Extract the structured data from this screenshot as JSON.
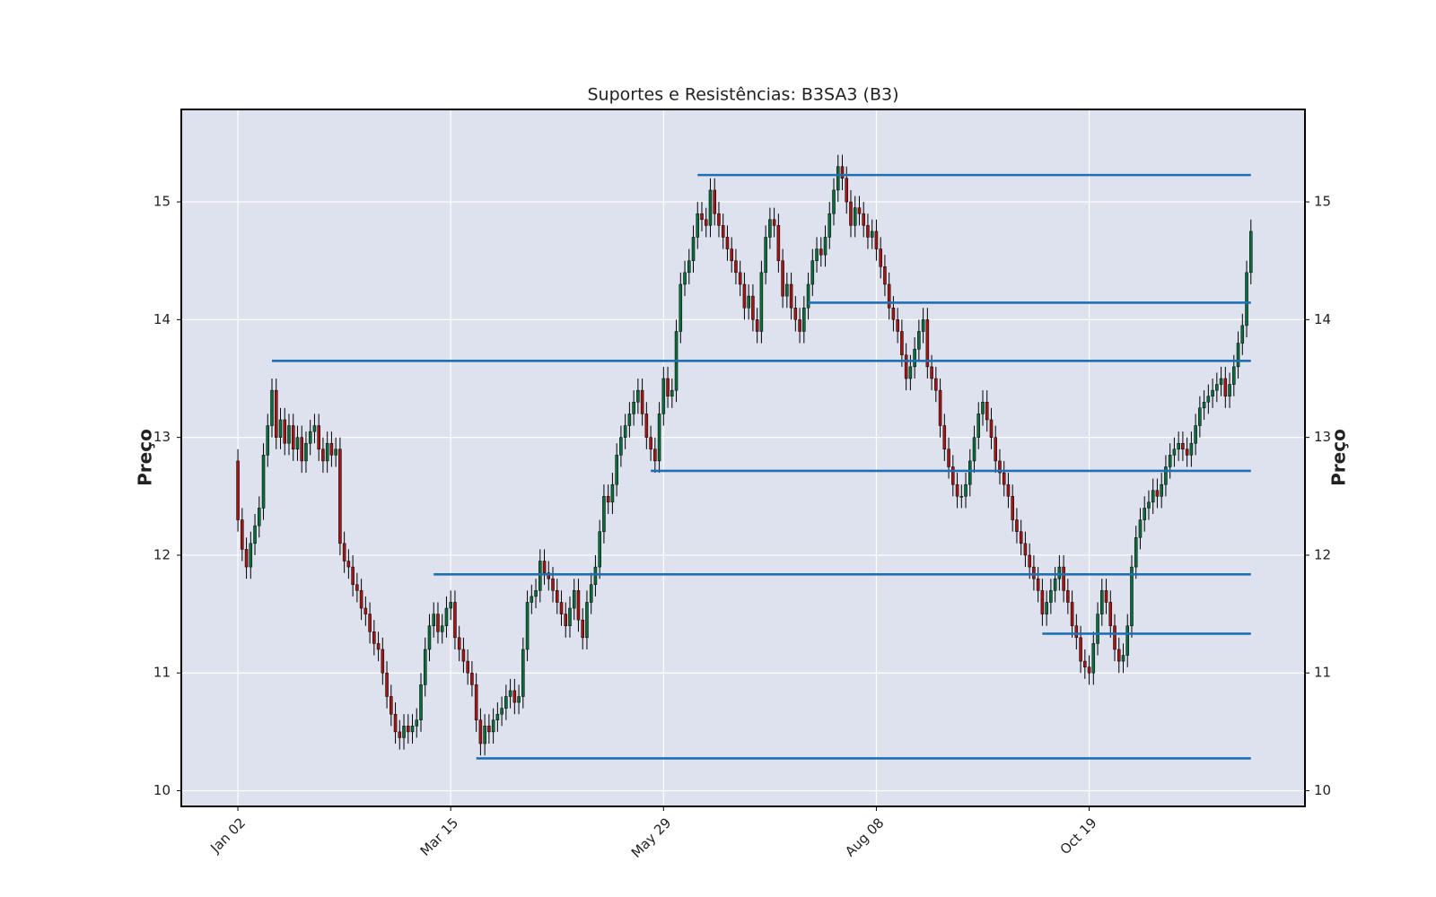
{
  "chart_data": {
    "type": "candlestick",
    "title": "Suportes e Resistências: B3SA3 (B3)",
    "ylabel": "Preço",
    "y2label": "Preço",
    "xlim": [
      -13.3,
      250.7
    ],
    "ylim": [
      9.867,
      15.785
    ],
    "xticks": [
      {
        "value": 0,
        "label": "Jan 02"
      },
      {
        "value": 50,
        "label": "Mar 15"
      },
      {
        "value": 100,
        "label": "May 29"
      },
      {
        "value": 150,
        "label": "Aug 08"
      },
      {
        "value": 200,
        "label": "Oct 19"
      }
    ],
    "yticks": [
      10,
      11,
      12,
      13,
      14,
      15
    ],
    "y2ticks": [
      10,
      11,
      12,
      13,
      14,
      15
    ],
    "grid": true,
    "up_color": "#0b6b3a",
    "down_color": "#a11515",
    "wick_color": "#000000",
    "level_color": "#1f6fb4",
    "background": "#dde2ee",
    "open": [
      12.8,
      12.3,
      12.05,
      11.9,
      12.1,
      12.25,
      12.4,
      12.85,
      13.1,
      13.4,
      13,
      13.15,
      12.95,
      13.1,
      12.9,
      13,
      12.8,
      12.95,
      13.05,
      13.1,
      12.9,
      12.8,
      12.95,
      12.85,
      12.9,
      12.1,
      11.95,
      11.9,
      11.75,
      11.7,
      11.55,
      11.5,
      11.35,
      11.25,
      11.2,
      11,
      10.8,
      10.65,
      10.5,
      10.45,
      10.55,
      10.5,
      10.55,
      10.6,
      10.9,
      11.2,
      11.4,
      11.5,
      11.35,
      11.4,
      11.55,
      11.6,
      11.3,
      11.2,
      11.1,
      11,
      10.9,
      10.6,
      10.4,
      10.55,
      10.5,
      10.6,
      10.65,
      10.7,
      10.8,
      10.85,
      10.75,
      10.8,
      11.2,
      11.6,
      11.65,
      11.7,
      11.95,
      11.85,
      11.8,
      11.7,
      11.6,
      11.5,
      11.4,
      11.55,
      11.7,
      11.45,
      11.3,
      11.6,
      11.75,
      11.9,
      12.2,
      12.5,
      12.45,
      12.6,
      12.85,
      13,
      13.1,
      13.2,
      13.3,
      13.4,
      13.2,
      13,
      12.9,
      12.8,
      13.2,
      13.5,
      13.35,
      13.4,
      13.9,
      14.3,
      14.4,
      14.5,
      14.7,
      14.9,
      14.85,
      14.8,
      15.1,
      14.9,
      14.8,
      14.7,
      14.6,
      14.5,
      14.4,
      14.3,
      14.1,
      14.2,
      14,
      13.9,
      14.4,
      14.7,
      14.85,
      14.8,
      14.5,
      14.2,
      14.3,
      14.1,
      14,
      13.9,
      14.1,
      14.3,
      14.5,
      14.6,
      14.55,
      14.7,
      14.9,
      15.1,
      15.3,
      15.2,
      15,
      14.8,
      14.95,
      14.9,
      14.8,
      14.7,
      14.75,
      14.6,
      14.45,
      14.3,
      14.1,
      14,
      13.9,
      13.7,
      13.5,
      13.6,
      13.75,
      13.9,
      14,
      13.6,
      13.5,
      13.4,
      13.1,
      12.9,
      12.75,
      12.6,
      12.5,
      12.5,
      12.6,
      12.8,
      13,
      13.2,
      13.3,
      13.15,
      13,
      12.8,
      12.7,
      12.6,
      12.5,
      12.3,
      12.2,
      12.1,
      12,
      11.9,
      11.8,
      11.7,
      11.5,
      11.6,
      11.7,
      11.8,
      11.9,
      11.7,
      11.6,
      11.4,
      11.3,
      11.1,
      11.05,
      11,
      11.25,
      11.5,
      11.7,
      11.6,
      11.4,
      11.2,
      11.1,
      11.15,
      11.4,
      11.9,
      12.15,
      12.3,
      12.4,
      12.45,
      12.55,
      12.5,
      12.6,
      12.75,
      12.85,
      12.9,
      12.95,
      12.9,
      12.85,
      12.95,
      13.1,
      13.25,
      13.3,
      13.35,
      13.4,
      13.45,
      13.5,
      13.35,
      13.45,
      13.6,
      13.8,
      13.95,
      14.4
    ],
    "high": [
      12.9,
      12.4,
      12.15,
      12.2,
      12.35,
      12.5,
      12.95,
      13.2,
      13.5,
      13.5,
      13.25,
      13.25,
      13.2,
      13.2,
      13.1,
      13.1,
      13.05,
      13.15,
      13.2,
      13.2,
      13,
      13.05,
      13.05,
      13,
      13,
      12.2,
      12.05,
      12,
      11.85,
      11.8,
      11.65,
      11.6,
      11.45,
      11.35,
      11.3,
      11.1,
      10.9,
      10.75,
      10.6,
      10.65,
      10.65,
      10.65,
      10.7,
      11,
      11.3,
      11.5,
      11.6,
      11.6,
      11.5,
      11.65,
      11.7,
      11.7,
      11.4,
      11.3,
      11.2,
      11.1,
      11,
      10.7,
      10.65,
      10.65,
      10.7,
      10.75,
      10.8,
      10.9,
      10.95,
      10.95,
      10.9,
      11.3,
      11.7,
      11.75,
      11.8,
      12.05,
      12.05,
      11.95,
      11.9,
      11.8,
      11.7,
      11.6,
      11.65,
      11.8,
      11.8,
      11.55,
      11.7,
      11.85,
      12,
      12.3,
      12.6,
      12.6,
      12.7,
      12.95,
      13.1,
      13.2,
      13.3,
      13.4,
      13.5,
      13.5,
      13.3,
      13.1,
      13,
      13.3,
      13.6,
      13.6,
      13.5,
      14,
      14.4,
      14.5,
      14.6,
      14.8,
      15,
      15,
      14.95,
      15.2,
      15.2,
      15,
      14.9,
      14.8,
      14.7,
      14.6,
      14.5,
      14.4,
      14.3,
      14.3,
      14.1,
      14.5,
      14.8,
      14.95,
      14.95,
      14.9,
      14.6,
      14.4,
      14.4,
      14.2,
      14.1,
      14.2,
      14.4,
      14.6,
      14.7,
      14.7,
      14.8,
      15,
      15.2,
      15.4,
      15.4,
      15.3,
      15.1,
      15.05,
      15.05,
      15,
      14.9,
      14.85,
      14.85,
      14.7,
      14.55,
      14.4,
      14.2,
      14.1,
      14,
      13.8,
      13.7,
      13.85,
      14,
      14.1,
      14.1,
      13.7,
      13.6,
      13.5,
      13.2,
      13,
      12.85,
      12.7,
      12.6,
      12.7,
      12.9,
      13.1,
      13.3,
      13.4,
      13.4,
      13.25,
      13.1,
      12.9,
      12.8,
      12.7,
      12.6,
      12.4,
      12.3,
      12.2,
      12.1,
      12,
      11.9,
      11.8,
      11.7,
      11.8,
      11.9,
      12,
      12,
      11.8,
      11.7,
      11.5,
      11.4,
      11.2,
      11.15,
      11.35,
      11.6,
      11.8,
      11.8,
      11.7,
      11.5,
      11.3,
      11.25,
      11.5,
      12,
      12.25,
      12.4,
      12.5,
      12.55,
      12.65,
      12.65,
      12.7,
      12.85,
      12.95,
      13,
      13.05,
      13.05,
      13,
      13.05,
      13.2,
      13.35,
      13.4,
      13.45,
      13.5,
      13.55,
      13.6,
      13.6,
      13.55,
      13.7,
      13.9,
      14.05,
      14.5,
      14.85
    ],
    "low": [
      12.2,
      11.95,
      11.8,
      11.8,
      12,
      12.15,
      12.3,
      12.75,
      13,
      12.9,
      12.9,
      12.85,
      12.85,
      12.8,
      12.8,
      12.7,
      12.7,
      12.85,
      12.95,
      12.8,
      12.7,
      12.7,
      12.75,
      12.75,
      12,
      11.85,
      11.8,
      11.65,
      11.6,
      11.45,
      11.4,
      11.25,
      11.15,
      11.1,
      10.9,
      10.7,
      10.55,
      10.4,
      10.35,
      10.35,
      10.4,
      10.4,
      10.45,
      10.5,
      10.8,
      11.1,
      11.3,
      11.25,
      11.25,
      11.3,
      11.45,
      11.2,
      11.1,
      11,
      10.9,
      10.8,
      10.5,
      10.3,
      10.3,
      10.4,
      10.4,
      10.5,
      10.55,
      10.6,
      10.7,
      10.65,
      10.65,
      10.7,
      11.1,
      11.5,
      11.55,
      11.6,
      11.75,
      11.7,
      11.6,
      11.5,
      11.4,
      11.3,
      11.3,
      11.45,
      11.35,
      11.2,
      11.2,
      11.5,
      11.65,
      11.8,
      12.1,
      12.35,
      12.35,
      12.5,
      12.75,
      12.9,
      13,
      13.1,
      13.2,
      13.1,
      12.9,
      12.8,
      12.7,
      12.7,
      13.1,
      13.25,
      13.25,
      13.3,
      13.8,
      14.2,
      14.3,
      14.4,
      14.6,
      14.75,
      14.7,
      14.7,
      14.8,
      14.7,
      14.6,
      14.5,
      14.4,
      14.3,
      14.2,
      14,
      14,
      13.9,
      13.8,
      13.8,
      14.3,
      14.6,
      14.7,
      14.4,
      14.1,
      14.1,
      14,
      13.9,
      13.8,
      13.8,
      14,
      14.2,
      14.4,
      14.45,
      14.45,
      14.6,
      14.8,
      15,
      15.1,
      14.9,
      14.7,
      14.7,
      14.8,
      14.7,
      14.6,
      14.6,
      14.5,
      14.35,
      14.2,
      14,
      13.9,
      13.8,
      13.6,
      13.4,
      13.4,
      13.5,
      13.65,
      13.8,
      13.5,
      13.4,
      13.3,
      13,
      12.8,
      12.65,
      12.5,
      12.4,
      12.4,
      12.4,
      12.5,
      12.7,
      12.9,
      13.1,
      13.05,
      12.9,
      12.7,
      12.6,
      12.5,
      12.4,
      12.2,
      12.1,
      12,
      11.9,
      11.8,
      11.7,
      11.6,
      11.4,
      11.4,
      11.5,
      11.6,
      11.7,
      11.6,
      11.5,
      11.3,
      11.2,
      11,
      10.95,
      10.9,
      10.9,
      11.15,
      11.4,
      11.5,
      11.3,
      11.1,
      11,
      11,
      11.05,
      11.3,
      11.8,
      12.05,
      12.2,
      12.3,
      12.35,
      12.4,
      12.4,
      12.5,
      12.65,
      12.75,
      12.8,
      12.8,
      12.75,
      12.75,
      12.85,
      13,
      13.15,
      13.2,
      13.25,
      13.3,
      13.35,
      13.25,
      13.25,
      13.35,
      13.5,
      13.7,
      13.85,
      14.3
    ],
    "close": [
      12.3,
      12.05,
      11.9,
      12.1,
      12.25,
      12.4,
      12.85,
      13.1,
      13.4,
      13,
      13.15,
      12.95,
      13.1,
      12.9,
      13,
      12.8,
      12.95,
      13.05,
      13.1,
      12.9,
      12.8,
      12.95,
      12.85,
      12.9,
      12.1,
      11.95,
      11.9,
      11.75,
      11.7,
      11.55,
      11.5,
      11.35,
      11.25,
      11.2,
      11,
      10.8,
      10.65,
      10.5,
      10.45,
      10.55,
      10.5,
      10.55,
      10.6,
      10.9,
      11.2,
      11.4,
      11.5,
      11.35,
      11.4,
      11.55,
      11.6,
      11.3,
      11.2,
      11.1,
      11,
      10.9,
      10.6,
      10.4,
      10.55,
      10.5,
      10.6,
      10.65,
      10.7,
      10.8,
      10.85,
      10.75,
      10.8,
      11.2,
      11.6,
      11.65,
      11.7,
      11.95,
      11.85,
      11.8,
      11.7,
      11.6,
      11.5,
      11.4,
      11.55,
      11.7,
      11.45,
      11.3,
      11.6,
      11.75,
      11.9,
      12.2,
      12.5,
      12.45,
      12.6,
      12.85,
      13,
      13.1,
      13.2,
      13.3,
      13.4,
      13.2,
      13,
      12.9,
      12.8,
      13.2,
      13.5,
      13.35,
      13.4,
      13.9,
      14.3,
      14.4,
      14.5,
      14.7,
      14.9,
      14.85,
      14.8,
      15.1,
      14.9,
      14.8,
      14.7,
      14.6,
      14.5,
      14.4,
      14.3,
      14.1,
      14.2,
      14,
      13.9,
      14.4,
      14.7,
      14.85,
      14.8,
      14.5,
      14.2,
      14.3,
      14.1,
      14,
      13.9,
      14.1,
      14.3,
      14.5,
      14.6,
      14.55,
      14.7,
      14.9,
      15.1,
      15.3,
      15.2,
      15,
      14.8,
      14.95,
      14.9,
      14.8,
      14.7,
      14.75,
      14.6,
      14.45,
      14.3,
      14.1,
      14,
      13.9,
      13.7,
      13.5,
      13.6,
      13.75,
      13.9,
      14,
      13.6,
      13.5,
      13.4,
      13.1,
      12.9,
      12.75,
      12.6,
      12.5,
      12.5,
      12.6,
      12.8,
      13,
      13.2,
      13.3,
      13.15,
      13,
      12.8,
      12.7,
      12.6,
      12.5,
      12.3,
      12.2,
      12.1,
      12,
      11.9,
      11.8,
      11.7,
      11.5,
      11.6,
      11.7,
      11.8,
      11.9,
      11.7,
      11.6,
      11.4,
      11.3,
      11.1,
      11.05,
      11,
      11.25,
      11.5,
      11.7,
      11.6,
      11.4,
      11.2,
      11.1,
      11.15,
      11.4,
      11.9,
      12.15,
      12.3,
      12.4,
      12.45,
      12.55,
      12.5,
      12.6,
      12.75,
      12.85,
      12.9,
      12.95,
      12.9,
      12.85,
      12.95,
      13.1,
      13.25,
      13.3,
      13.35,
      13.4,
      13.45,
      13.5,
      13.35,
      13.45,
      13.6,
      13.8,
      13.95,
      14.4,
      14.75
    ],
    "levels": [
      {
        "value": 15.228,
        "x": [
          108,
          238
        ]
      },
      {
        "value": 14.144,
        "x": [
          134,
          238
        ]
      },
      {
        "value": 13.65,
        "x": [
          8,
          238
        ]
      },
      {
        "value": 12.716,
        "x": [
          97,
          238
        ]
      },
      {
        "value": 11.837,
        "x": [
          46,
          238
        ]
      },
      {
        "value": 11.334,
        "x": [
          189,
          238
        ]
      },
      {
        "value": 10.275,
        "x": [
          56,
          238
        ]
      }
    ]
  }
}
